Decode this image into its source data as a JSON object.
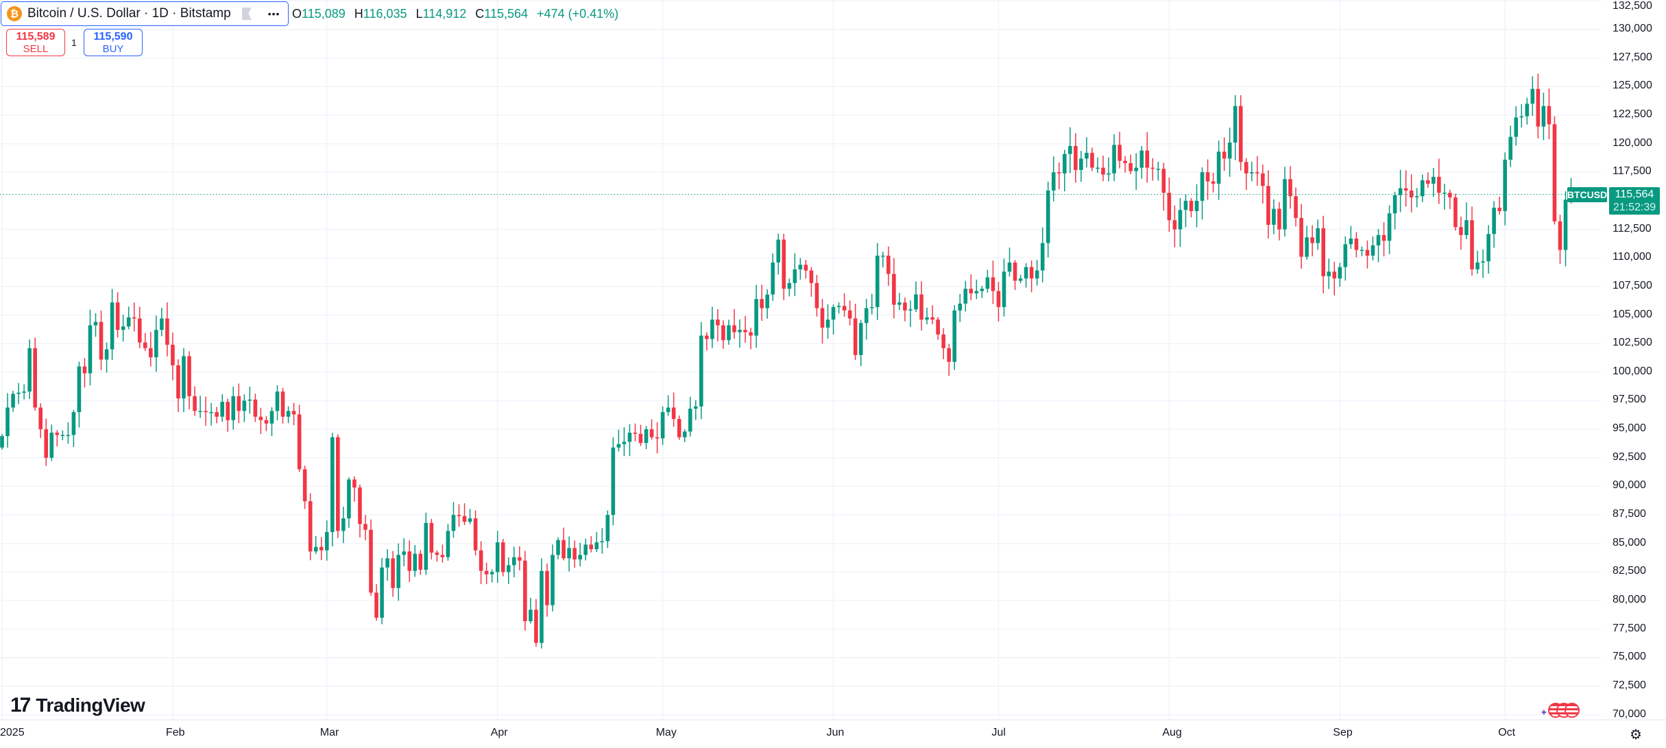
{
  "header": {
    "symbol_title": "Bitcoin / U.S. Dollar · 1D · Bitstamp",
    "coin_icon": "bitcoin-icon",
    "more_label": "•••",
    "ohlc": {
      "o_label": "O",
      "o": "115,089",
      "h_label": "H",
      "h": "116,035",
      "l_label": "L",
      "l": "114,912",
      "c_label": "C",
      "c": "115,564",
      "change": "+474 (+0.41%)"
    }
  },
  "trade": {
    "sell_price": "115,589",
    "sell_label": "SELL",
    "quantity": "1",
    "buy_price": "115,590",
    "buy_label": "BUY"
  },
  "logo": {
    "text": "TradingView",
    "mark": "17"
  },
  "price_label": {
    "symbol": "BTCUSD",
    "price": "115,564",
    "countdown": "21:52:39"
  },
  "colors": {
    "up": "#089981",
    "down": "#f23645",
    "accent": "#2962ff"
  },
  "chart_data": {
    "type": "candlestick",
    "title": "Bitcoin / U.S. Dollar · 1D · Bitstamp",
    "start_date": "2025-01-01",
    "first_open": 93400,
    "last_open": 115089,
    "unit": "thousands USD",
    "closes": [
      94.4,
      96.9,
      98.1,
      98.2,
      98.3,
      102.1,
      96.9,
      95.0,
      92.5,
      94.7,
      94.5,
      94.5,
      94.5,
      96.5,
      100.5,
      99.9,
      104.1,
      104.4,
      101.1,
      102.0,
      106.1,
      103.7,
      104.0,
      104.8,
      104.7,
      102.6,
      102.1,
      101.3,
      103.7,
      104.7,
      102.4,
      100.6,
      97.7,
      101.4,
      97.9,
      96.6,
      96.6,
      96.5,
      96.5,
      96.1,
      97.4,
      95.8,
      97.9,
      96.6,
      97.5,
      97.6,
      96.1,
      95.8,
      95.5,
      96.6,
      98.3,
      96.1,
      96.6,
      96.3,
      91.5,
      88.7,
      84.3,
      84.7,
      84.4,
      86.0,
      94.3,
      86.1,
      87.2,
      90.6,
      89.9,
      86.7,
      86.2,
      80.7,
      78.5,
      82.9,
      83.7,
      81.1,
      84.0,
      84.3,
      82.6,
      84.1,
      82.7,
      86.8,
      84.2,
      84.0,
      83.8,
      86.1,
      87.5,
      87.4,
      86.9,
      87.2,
      84.4,
      82.6,
      82.3,
      82.5,
      85.1,
      82.5,
      83.1,
      83.8,
      83.5,
      78.2,
      79.2,
      76.3,
      82.6,
      79.6,
      84.0,
      85.3,
      83.7,
      84.6,
      83.6,
      84.0,
      84.9,
      84.5,
      85.1,
      85.2,
      87.5,
      93.4,
      93.7,
      93.9,
      94.7,
      94.6,
      93.8,
      95.0,
      94.3,
      94.2,
      96.5,
      96.9,
      95.9,
      94.3,
      94.8,
      96.8,
      97.0,
      103.2,
      102.9,
      104.6,
      104.1,
      102.8,
      104.1,
      103.5,
      103.7,
      103.5,
      103.2,
      106.4,
      105.6,
      106.8,
      109.6,
      111.6,
      107.3,
      107.8,
      109.0,
      109.4,
      108.9,
      107.8,
      105.6,
      103.9,
      104.6,
      105.7,
      105.8,
      105.4,
      104.7,
      101.5,
      104.3,
      105.6,
      105.7,
      110.2,
      110.2,
      108.6,
      105.9,
      106.1,
      105.4,
      105.5,
      106.8,
      104.6,
      104.8,
      104.6,
      103.3,
      102.1,
      100.9,
      105.4,
      106.0,
      107.3,
      106.9,
      107.1,
      107.3,
      108.3,
      107.1,
      105.7,
      108.8,
      109.6,
      108.0,
      108.2,
      109.2,
      108.2,
      108.9,
      111.3,
      115.9,
      117.5,
      117.4,
      119.1,
      119.8,
      117.7,
      118.7,
      119.2,
      117.9,
      117.9,
      117.3,
      117.4,
      119.9,
      118.5,
      118.3,
      117.6,
      117.9,
      119.4,
      117.9,
      117.8,
      117.8,
      115.7,
      113.3,
      112.5,
      114.2,
      115.0,
      114.1,
      115.0,
      117.5,
      116.7,
      116.5,
      119.3,
      118.7,
      120.1,
      123.3,
      118.4,
      117.4,
      117.5,
      117.4,
      116.3,
      112.9,
      114.3,
      112.5,
      116.9,
      115.4,
      113.5,
      110.1,
      111.8,
      111.3,
      112.6,
      108.4,
      108.8,
      108.2,
      109.2,
      111.2,
      111.7,
      110.7,
      110.7,
      110.2,
      111.1,
      112.0,
      111.5,
      113.9,
      115.5,
      116.1,
      115.9,
      115.3,
      115.4,
      116.8,
      116.5,
      117.1,
      115.7,
      115.7,
      115.3,
      112.7,
      112.0,
      113.3,
      109.0,
      109.6,
      109.7,
      112.1,
      114.4,
      114.1,
      118.6,
      120.6,
      122.3,
      122.4,
      123.5,
      124.8,
      121.5,
      123.3,
      121.7,
      113.2,
      110.7,
      115.1,
      115.564
    ],
    "x_tick_labels": [
      "2025",
      "Feb",
      "Mar",
      "Apr",
      "May",
      "Jun",
      "Jul",
      "Aug",
      "Sep",
      "Oct"
    ],
    "x_tick_day_index": [
      0,
      31,
      59,
      90,
      120,
      151,
      181,
      212,
      243,
      273
    ],
    "y_tick_labels": [
      "132,500",
      "130,000",
      "127,500",
      "125,000",
      "122,500",
      "120,000",
      "117,500",
      "112,500",
      "110,000",
      "107,500",
      "105,000",
      "102,500",
      "100,000",
      "97,500",
      "95,000",
      "92,500",
      "90,000",
      "87,500",
      "85,000",
      "82,500",
      "80,000",
      "77,500",
      "75,000",
      "72,500",
      "70,000"
    ],
    "ylim": [
      70000,
      132500
    ],
    "current_price": 115564,
    "grid": true
  }
}
